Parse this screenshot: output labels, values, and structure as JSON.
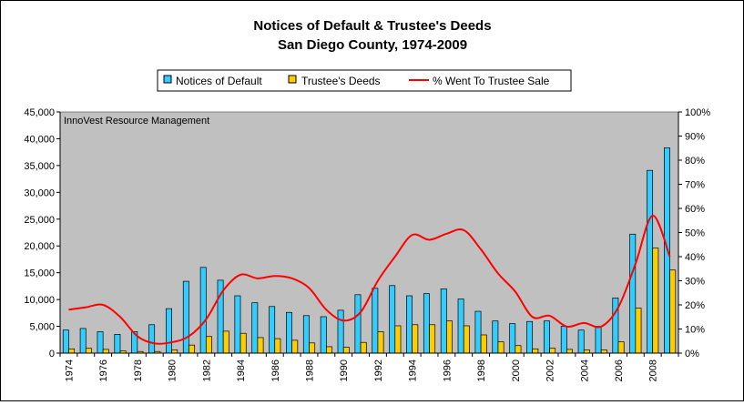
{
  "chart_data": {
    "type": "bar",
    "title": "Notices of Default & Trustee's Deeds",
    "subtitle": "San Diego County, 1974-2009",
    "annotation": "InnoVest Resource Management",
    "categories": [
      1974,
      1975,
      1976,
      1977,
      1978,
      1979,
      1980,
      1981,
      1982,
      1983,
      1984,
      1985,
      1986,
      1987,
      1988,
      1989,
      1990,
      1991,
      1992,
      1993,
      1994,
      1995,
      1996,
      1997,
      1998,
      1999,
      2000,
      2001,
      2002,
      2003,
      2004,
      2005,
      2006,
      2007,
      2008,
      2009
    ],
    "x_tick_labels": [
      "1974",
      "1976",
      "1978",
      "1980",
      "1982",
      "1984",
      "1986",
      "1988",
      "1990",
      "1992",
      "1994",
      "1996",
      "1998",
      "2000",
      "2002",
      "2004",
      "2006",
      "2008"
    ],
    "series": [
      {
        "name": "Notices of Default",
        "type": "bar",
        "axis": "left",
        "color": "#33CCFF",
        "values": [
          4300,
          4600,
          4000,
          3500,
          4000,
          5300,
          8300,
          13400,
          16000,
          13600,
          10700,
          9400,
          8700,
          7600,
          7000,
          6800,
          8000,
          10900,
          12100,
          12600,
          10700,
          11100,
          12000,
          10100,
          7800,
          6000,
          5500,
          5900,
          6000,
          5000,
          4300,
          5000,
          10300,
          22200,
          34100,
          38300
        ]
      },
      {
        "name": "Trustee's Deeds",
        "type": "bar",
        "axis": "left",
        "color": "#FFCC00",
        "values": [
          800,
          900,
          700,
          400,
          300,
          300,
          600,
          1500,
          3100,
          4100,
          3700,
          2900,
          2700,
          2400,
          1900,
          1200,
          1100,
          2000,
          4000,
          5100,
          5300,
          5300,
          6000,
          5100,
          3400,
          2100,
          1400,
          800,
          900,
          700,
          600,
          600,
          2100,
          8400,
          19600,
          15500
        ]
      },
      {
        "name": "% Went To Trustee Sale",
        "type": "line",
        "axis": "right",
        "color": "#FF0000",
        "values": [
          18,
          19,
          20,
          15,
          7,
          4,
          4.5,
          7,
          14,
          26,
          32.5,
          31,
          32,
          31,
          27,
          18,
          13.5,
          17,
          30,
          40,
          49,
          47,
          49.5,
          51,
          43,
          33,
          25.5,
          15,
          15.5,
          11,
          12.5,
          11,
          19,
          37,
          57,
          40
        ]
      }
    ],
    "y_left": {
      "min": 0,
      "max": 45000,
      "step": 5000,
      "tick_labels": [
        "0",
        "5,000",
        "10,000",
        "15,000",
        "20,000",
        "25,000",
        "30,000",
        "35,000",
        "40,000",
        "45,000"
      ]
    },
    "y_right": {
      "min": 0,
      "max": 100,
      "step": 10,
      "tick_labels": [
        "0%",
        "10%",
        "20%",
        "30%",
        "40%",
        "50%",
        "60%",
        "70%",
        "80%",
        "90%",
        "100%"
      ]
    },
    "grid": false,
    "legend_position": "top-center",
    "plot_background": "#C0C0C0"
  }
}
